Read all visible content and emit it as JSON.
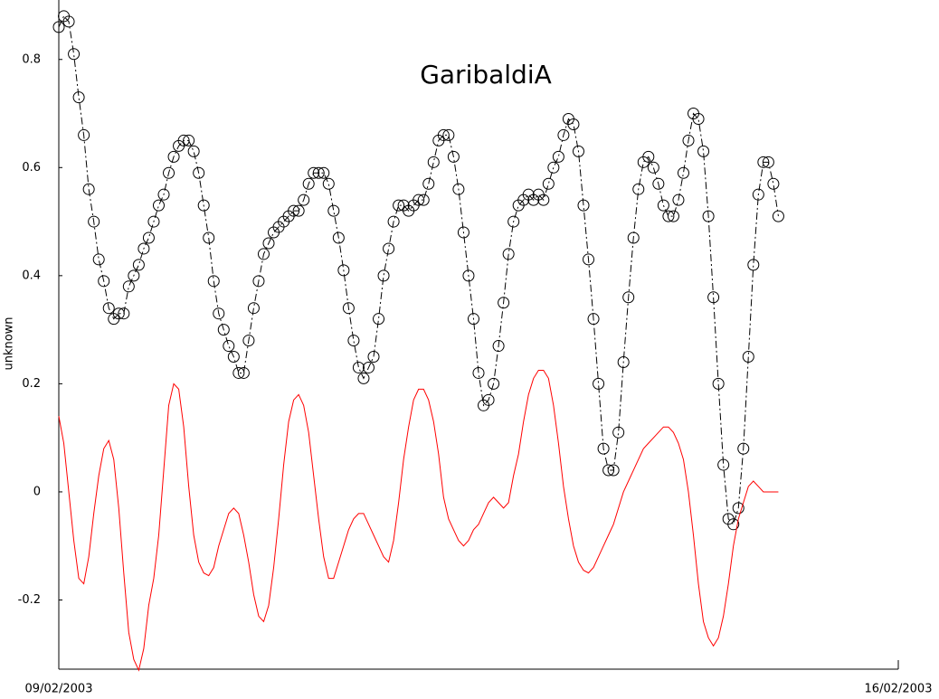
{
  "chart_data": {
    "type": "line",
    "title": "GaribaldiA",
    "ylabel": "unknown",
    "x": [
      0,
      1,
      2,
      3,
      4,
      5,
      6,
      7,
      8,
      9,
      10,
      11,
      12,
      13,
      14,
      15,
      16,
      17,
      18,
      19,
      20,
      21,
      22,
      23,
      24,
      25,
      26,
      27,
      28,
      29,
      30,
      31,
      32,
      33,
      34,
      35,
      36,
      37,
      38,
      39,
      40,
      41,
      42,
      43,
      44,
      45,
      46,
      47,
      48,
      49,
      50,
      51,
      52,
      53,
      54,
      55,
      56,
      57,
      58,
      59,
      60,
      61,
      62,
      63,
      64,
      65,
      66,
      67,
      68,
      69,
      70,
      71,
      72,
      73,
      74,
      75,
      76,
      77,
      78,
      79,
      80,
      81,
      82,
      83,
      84,
      85,
      86,
      87,
      88,
      89,
      90,
      91,
      92,
      93,
      94,
      95,
      96,
      97,
      98,
      99,
      100,
      101,
      102,
      103,
      104,
      105,
      106,
      107,
      108,
      109,
      110,
      111,
      112,
      113,
      114,
      115,
      116,
      117,
      118,
      119,
      120,
      121,
      122,
      123,
      124,
      125,
      126,
      127,
      128,
      129,
      130,
      131,
      132,
      133,
      134,
      135,
      136,
      137,
      138,
      139,
      140,
      141,
      142,
      143,
      144
    ],
    "series": [
      {
        "color": "#000000",
        "marker": "circle",
        "dash": "dashdot",
        "values": [
          0.86,
          0.88,
          0.87,
          0.81,
          0.73,
          0.66,
          0.56,
          0.5,
          0.43,
          0.39,
          0.34,
          0.32,
          0.33,
          0.33,
          0.38,
          0.4,
          0.42,
          0.45,
          0.47,
          0.5,
          0.53,
          0.55,
          0.59,
          0.62,
          0.64,
          0.65,
          0.65,
          0.63,
          0.59,
          0.53,
          0.47,
          0.39,
          0.33,
          0.3,
          0.27,
          0.25,
          0.22,
          0.22,
          0.28,
          0.34,
          0.39,
          0.44,
          0.46,
          0.48,
          0.49,
          0.5,
          0.51,
          0.52,
          0.52,
          0.54,
          0.57,
          0.59,
          0.59,
          0.59,
          0.57,
          0.52,
          0.47,
          0.41,
          0.34,
          0.28,
          0.23,
          0.21,
          0.23,
          0.25,
          0.32,
          0.4,
          0.45,
          0.5,
          0.53,
          0.53,
          0.52,
          0.53,
          0.54,
          0.54,
          0.57,
          0.61,
          0.65,
          0.66,
          0.66,
          0.62,
          0.56,
          0.48,
          0.4,
          0.32,
          0.22,
          0.16,
          0.17,
          0.2,
          0.27,
          0.35,
          0.44,
          0.5,
          0.53,
          0.54,
          0.55,
          0.54,
          0.55,
          0.54,
          0.57,
          0.6,
          0.62,
          0.66,
          0.69,
          0.68,
          0.63,
          0.53,
          0.43,
          0.32,
          0.2,
          0.08,
          0.04,
          0.04,
          0.11,
          0.24,
          0.36,
          0.47,
          0.56,
          0.61,
          0.62,
          0.6,
          0.57,
          0.53,
          0.51,
          0.51,
          0.54,
          0.59,
          0.65,
          0.7,
          0.69,
          0.63,
          0.51,
          0.36,
          0.2,
          0.05,
          -0.05,
          -0.06,
          -0.03,
          0.08,
          0.25,
          0.42,
          0.55,
          0.61,
          0.61,
          0.57,
          0.51
        ]
      },
      {
        "color": "#ff0000",
        "marker": "none",
        "dash": "solid",
        "values": [
          0.14,
          0.09,
          0.0,
          -0.09,
          -0.16,
          -0.17,
          -0.12,
          -0.04,
          0.03,
          0.08,
          0.095,
          0.06,
          -0.03,
          -0.15,
          -0.26,
          -0.31,
          -0.33,
          -0.29,
          -0.21,
          -0.16,
          -0.08,
          0.04,
          0.16,
          0.2,
          0.19,
          0.12,
          0.01,
          -0.08,
          -0.13,
          -0.15,
          -0.155,
          -0.14,
          -0.1,
          -0.07,
          -0.04,
          -0.03,
          -0.04,
          -0.08,
          -0.13,
          -0.19,
          -0.23,
          -0.24,
          -0.21,
          -0.14,
          -0.05,
          0.05,
          0.13,
          0.17,
          0.18,
          0.16,
          0.11,
          0.03,
          -0.05,
          -0.12,
          -0.16,
          -0.16,
          -0.13,
          -0.1,
          -0.07,
          -0.05,
          -0.04,
          -0.04,
          -0.06,
          -0.08,
          -0.1,
          -0.12,
          -0.13,
          -0.09,
          -0.02,
          0.06,
          0.12,
          0.17,
          0.19,
          0.19,
          0.17,
          0.13,
          0.07,
          -0.01,
          -0.05,
          -0.07,
          -0.09,
          -0.1,
          -0.09,
          -0.07,
          -0.06,
          -0.04,
          -0.02,
          -0.01,
          -0.02,
          -0.03,
          -0.02,
          0.03,
          0.07,
          0.13,
          0.18,
          0.21,
          0.225,
          0.225,
          0.21,
          0.16,
          0.09,
          0.01,
          -0.05,
          -0.1,
          -0.13,
          -0.145,
          -0.15,
          -0.14,
          -0.12,
          -0.1,
          -0.08,
          -0.06,
          -0.03,
          0.0,
          0.02,
          0.04,
          0.06,
          0.08,
          0.09,
          0.1,
          0.11,
          0.12,
          0.12,
          0.11,
          0.09,
          0.06,
          0.0,
          -0.08,
          -0.17,
          -0.24,
          -0.27,
          -0.285,
          -0.27,
          -0.23,
          -0.17,
          -0.1,
          -0.05,
          -0.02,
          0.01,
          0.02,
          0.01,
          0.0,
          0.0,
          0.0,
          0.0
        ]
      }
    ],
    "xlim": [
      0,
      168
    ],
    "xticks": [
      {
        "value": 0,
        "label": "09/02/2003"
      },
      {
        "value": 168,
        "label": "16/02/2003"
      }
    ],
    "ylim": [
      -0.328,
      0.91
    ],
    "yticks": [
      -0.2,
      0,
      0.2,
      0.4,
      0.6,
      0.8
    ],
    "grid": false
  }
}
